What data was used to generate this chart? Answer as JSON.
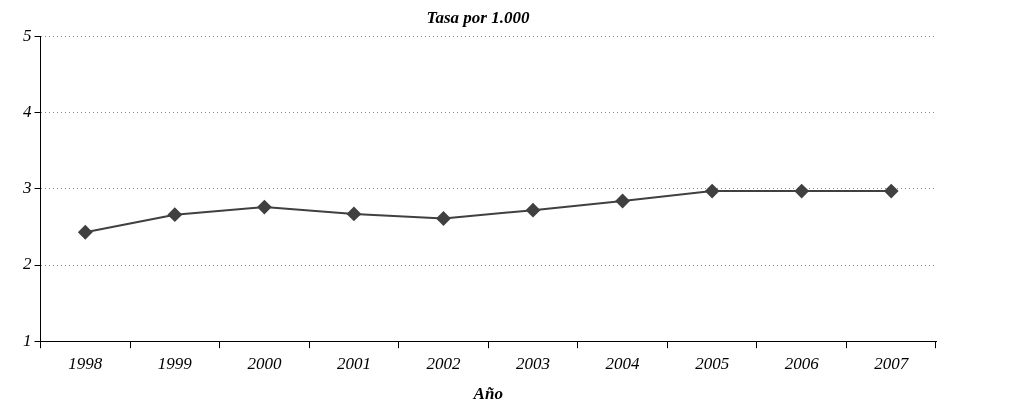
{
  "chart_data": {
    "type": "line",
    "title": "Tasa por 1.000",
    "xlabel": "Año",
    "categories": [
      "1998",
      "1999",
      "2000",
      "2001",
      "2002",
      "2003",
      "2004",
      "2005",
      "2006",
      "2007"
    ],
    "series": [
      {
        "color": "#404040",
        "values": [
          2.43,
          2.66,
          2.76,
          2.67,
          2.61,
          2.72,
          2.84,
          2.97,
          2.97,
          2.97
        ]
      }
    ],
    "ylim": [
      1,
      5
    ],
    "yticks": [
      1,
      2,
      3,
      4,
      5
    ],
    "grid": "y",
    "legend": false,
    "marker": "diamond",
    "line_style": "solid"
  }
}
